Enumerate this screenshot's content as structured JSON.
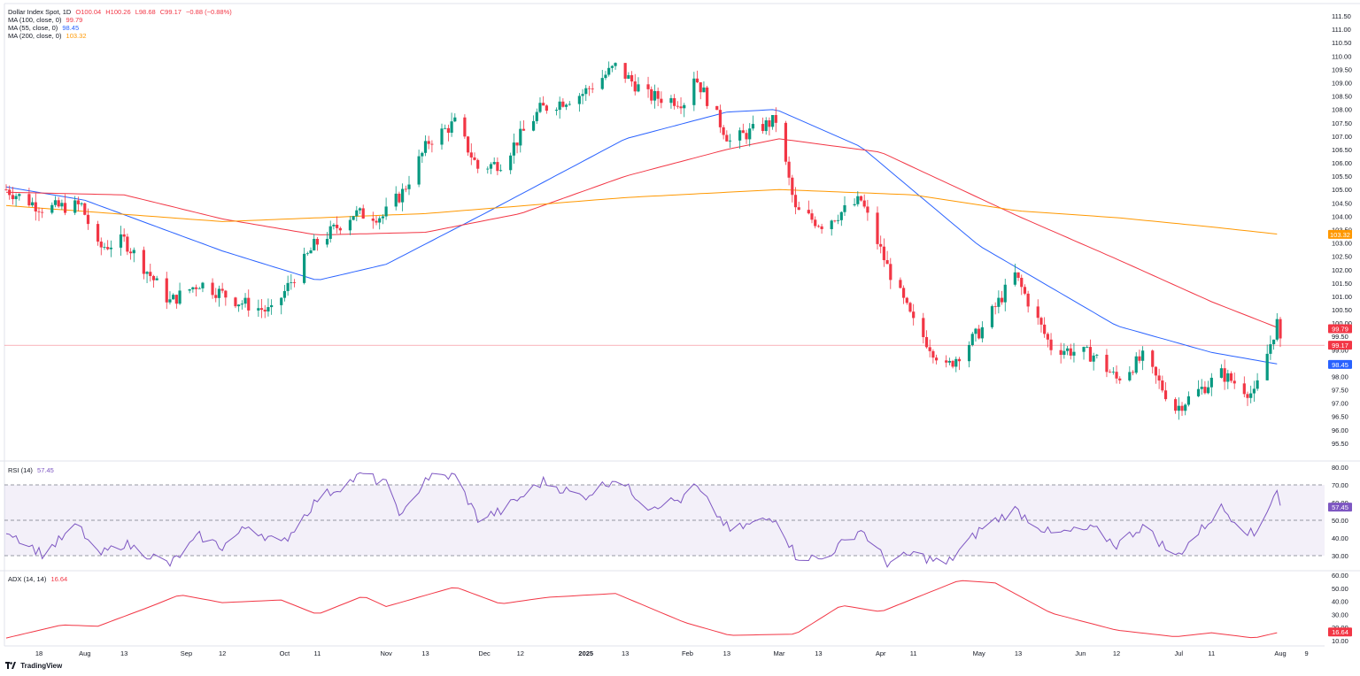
{
  "header": {
    "symbol": "Dollar Index Spot, 1D",
    "open": "O100.04",
    "high": "H100.26",
    "low": "L98.68",
    "close": "C99.17",
    "change": "−0.88 (−0.88%)"
  },
  "indicators": {
    "ma100": {
      "label": "MA (100, close, 0)",
      "value": "99.79",
      "color": "#f23645"
    },
    "ma55": {
      "label": "MA (55, close, 0)",
      "value": "98.45",
      "color": "#2962ff"
    },
    "ma200": {
      "label": "MA (200, close, 0)",
      "value": "103.32",
      "color": "#ff9800"
    },
    "rsi": {
      "label": "RSI (14)",
      "value": "57.45",
      "color": "#7e57c2"
    },
    "adx": {
      "label": "ADX (14, 14)",
      "value": "16.64",
      "color": "#f23645"
    }
  },
  "branding": "TradingView",
  "chart_data": {
    "type": "candlestick",
    "price_axis": {
      "ylim": [
        95.1,
        111.8
      ],
      "ticks": [
        "111.50",
        "111.00",
        "110.50",
        "110.00",
        "109.50",
        "109.00",
        "108.50",
        "108.00",
        "107.50",
        "107.00",
        "106.50",
        "106.00",
        "105.50",
        "105.00",
        "104.50",
        "104.00",
        "103.50",
        "103.00",
        "102.50",
        "102.00",
        "101.50",
        "101.00",
        "100.50",
        "100.00",
        "99.50",
        "99.00",
        "98.50",
        "98.00",
        "97.50",
        "97.00",
        "96.50",
        "96.00",
        "95.50"
      ],
      "last_price": "99.17",
      "badges": [
        {
          "text": "103.32",
          "value": 103.32,
          "color": "#ff9800"
        },
        {
          "text": "99.79",
          "value": 99.79,
          "color": "#f23645"
        },
        {
          "text": "99.17",
          "value": 99.17,
          "color": "#f23645"
        },
        {
          "text": "98.45",
          "value": 98.45,
          "color": "#2962ff"
        }
      ]
    },
    "time_axis": {
      "labels": [
        {
          "text": "18",
          "date": "2024-07-18"
        },
        {
          "text": "Aug",
          "date": "2024-08-01"
        },
        {
          "text": "13",
          "date": "2024-08-13"
        },
        {
          "text": "Sep",
          "date": "2024-09-01"
        },
        {
          "text": "12",
          "date": "2024-09-12"
        },
        {
          "text": "Oct",
          "date": "2024-10-01"
        },
        {
          "text": "11",
          "date": "2024-10-11"
        },
        {
          "text": "Nov",
          "date": "2024-11-01"
        },
        {
          "text": "13",
          "date": "2024-11-13"
        },
        {
          "text": "Dec",
          "date": "2024-12-01"
        },
        {
          "text": "12",
          "date": "2024-12-12"
        },
        {
          "text": "2025",
          "date": "2025-01-01"
        },
        {
          "text": "13",
          "date": "2025-01-13"
        },
        {
          "text": "Feb",
          "date": "2025-02-01"
        },
        {
          "text": "13",
          "date": "2025-02-13"
        },
        {
          "text": "Mar",
          "date": "2025-03-01"
        },
        {
          "text": "13",
          "date": "2025-03-13"
        },
        {
          "text": "Apr",
          "date": "2025-04-01"
        },
        {
          "text": "11",
          "date": "2025-04-11"
        },
        {
          "text": "May",
          "date": "2025-05-01"
        },
        {
          "text": "13",
          "date": "2025-05-13"
        },
        {
          "text": "Jun",
          "date": "2025-06-01"
        },
        {
          "text": "12",
          "date": "2025-06-12"
        },
        {
          "text": "Jul",
          "date": "2025-07-01"
        },
        {
          "text": "11",
          "date": "2025-07-11"
        },
        {
          "text": "Aug",
          "date": "2025-08-01"
        },
        {
          "text": "9",
          "date": "2025-08-09"
        }
      ]
    },
    "closes": [
      {
        "date": "2024-07-08",
        "close": 105.0
      },
      {
        "date": "2024-07-19",
        "close": 104.3
      },
      {
        "date": "2024-07-31",
        "close": 104.4
      },
      {
        "date": "2024-08-05",
        "close": 102.8
      },
      {
        "date": "2024-08-13",
        "close": 103.1
      },
      {
        "date": "2024-08-27",
        "close": 100.8
      },
      {
        "date": "2024-09-05",
        "close": 101.5
      },
      {
        "date": "2024-09-17",
        "close": 100.8
      },
      {
        "date": "2024-09-27",
        "close": 100.4
      },
      {
        "date": "2024-10-10",
        "close": 102.9
      },
      {
        "date": "2024-10-22",
        "close": 104.1
      },
      {
        "date": "2024-10-31",
        "close": 104.0
      },
      {
        "date": "2024-11-06",
        "close": 104.9
      },
      {
        "date": "2024-11-14",
        "close": 106.8
      },
      {
        "date": "2024-11-22",
        "close": 107.5
      },
      {
        "date": "2024-11-29",
        "close": 105.8
      },
      {
        "date": "2024-12-06",
        "close": 106.0
      },
      {
        "date": "2024-12-18",
        "close": 108.0
      },
      {
        "date": "2024-12-31",
        "close": 108.6
      },
      {
        "date": "2025-01-10",
        "close": 109.6
      },
      {
        "date": "2025-01-20",
        "close": 108.5
      },
      {
        "date": "2025-01-31",
        "close": 108.3
      },
      {
        "date": "2025-02-03",
        "close": 109.3
      },
      {
        "date": "2025-02-14",
        "close": 106.8
      },
      {
        "date": "2025-02-28",
        "close": 107.6
      },
      {
        "date": "2025-03-06",
        "close": 104.2
      },
      {
        "date": "2025-03-14",
        "close": 103.7
      },
      {
        "date": "2025-03-26",
        "close": 104.6
      },
      {
        "date": "2025-04-03",
        "close": 102.1
      },
      {
        "date": "2025-04-11",
        "close": 100.0
      },
      {
        "date": "2025-04-21",
        "close": 98.3
      },
      {
        "date": "2025-05-02",
        "close": 99.8
      },
      {
        "date": "2025-05-12",
        "close": 101.8
      },
      {
        "date": "2025-05-23",
        "close": 99.1
      },
      {
        "date": "2025-06-05",
        "close": 98.8
      },
      {
        "date": "2025-06-12",
        "close": 97.9
      },
      {
        "date": "2025-06-20",
        "close": 98.7
      },
      {
        "date": "2025-06-30",
        "close": 96.8
      },
      {
        "date": "2025-07-14",
        "close": 98.1
      },
      {
        "date": "2025-07-24",
        "close": 97.3
      },
      {
        "date": "2025-07-31",
        "close": 100.0
      },
      {
        "date": "2025-08-01",
        "close": 99.17
      }
    ],
    "ma_series": [
      {
        "name": "MA (55, close, 0)",
        "color": "#2962ff",
        "points": [
          {
            "date": "2024-07-08",
            "value": 105.1
          },
          {
            "date": "2024-08-01",
            "value": 104.6
          },
          {
            "date": "2024-09-12",
            "value": 102.7
          },
          {
            "date": "2024-10-11",
            "value": 101.6
          },
          {
            "date": "2024-11-01",
            "value": 102.2
          },
          {
            "date": "2024-12-01",
            "value": 104.1
          },
          {
            "date": "2025-01-13",
            "value": 106.9
          },
          {
            "date": "2025-02-13",
            "value": 107.9
          },
          {
            "date": "2025-02-28",
            "value": 108.0
          },
          {
            "date": "2025-03-26",
            "value": 106.6
          },
          {
            "date": "2025-05-01",
            "value": 102.9
          },
          {
            "date": "2025-06-12",
            "value": 99.9
          },
          {
            "date": "2025-07-11",
            "value": 98.9
          },
          {
            "date": "2025-08-01",
            "value": 98.45
          }
        ]
      },
      {
        "name": "MA (100, close, 0)",
        "color": "#f23645",
        "points": [
          {
            "date": "2024-07-08",
            "value": 104.9
          },
          {
            "date": "2024-08-13",
            "value": 104.8
          },
          {
            "date": "2024-09-12",
            "value": 103.9
          },
          {
            "date": "2024-10-11",
            "value": 103.3
          },
          {
            "date": "2024-11-13",
            "value": 103.4
          },
          {
            "date": "2024-12-12",
            "value": 104.1
          },
          {
            "date": "2025-01-13",
            "value": 105.5
          },
          {
            "date": "2025-02-13",
            "value": 106.5
          },
          {
            "date": "2025-03-01",
            "value": 106.9
          },
          {
            "date": "2025-04-01",
            "value": 106.4
          },
          {
            "date": "2025-05-13",
            "value": 104.0
          },
          {
            "date": "2025-06-12",
            "value": 102.4
          },
          {
            "date": "2025-07-11",
            "value": 100.8
          },
          {
            "date": "2025-08-01",
            "value": 99.79
          }
        ]
      },
      {
        "name": "MA (200, close, 0)",
        "color": "#ff9800",
        "points": [
          {
            "date": "2024-07-08",
            "value": 104.4
          },
          {
            "date": "2024-09-12",
            "value": 103.8
          },
          {
            "date": "2024-11-13",
            "value": 104.1
          },
          {
            "date": "2025-01-13",
            "value": 104.7
          },
          {
            "date": "2025-03-01",
            "value": 105.0
          },
          {
            "date": "2025-04-11",
            "value": 104.8
          },
          {
            "date": "2025-05-13",
            "value": 104.2
          },
          {
            "date": "2025-06-12",
            "value": 103.95
          },
          {
            "date": "2025-07-11",
            "value": 103.6
          },
          {
            "date": "2025-08-01",
            "value": 103.32
          }
        ]
      }
    ],
    "rsi": {
      "ylim": [
        22,
        82
      ],
      "ticks": [
        "80.00",
        "70.00",
        "60.00",
        "50.00",
        "40.00",
        "30.00"
      ],
      "levels": [
        70,
        50,
        30
      ],
      "last": "57.45",
      "points": [
        {
          "date": "2024-07-08",
          "value": 45
        },
        {
          "date": "2024-07-19",
          "value": 31
        },
        {
          "date": "2024-07-30",
          "value": 47
        },
        {
          "date": "2024-08-05",
          "value": 30
        },
        {
          "date": "2024-08-13",
          "value": 37
        },
        {
          "date": "2024-08-27",
          "value": 25
        },
        {
          "date": "2024-09-05",
          "value": 41
        },
        {
          "date": "2024-09-12",
          "value": 35
        },
        {
          "date": "2024-09-20",
          "value": 47
        },
        {
          "date": "2024-09-30",
          "value": 36
        },
        {
          "date": "2024-10-11",
          "value": 62
        },
        {
          "date": "2024-10-25",
          "value": 76
        },
        {
          "date": "2024-11-01",
          "value": 70
        },
        {
          "date": "2024-11-06",
          "value": 52
        },
        {
          "date": "2024-11-13",
          "value": 74
        },
        {
          "date": "2024-11-22",
          "value": 75
        },
        {
          "date": "2024-11-29",
          "value": 51
        },
        {
          "date": "2024-12-06",
          "value": 55
        },
        {
          "date": "2024-12-19",
          "value": 72
        },
        {
          "date": "2024-12-31",
          "value": 63
        },
        {
          "date": "2025-01-10",
          "value": 74
        },
        {
          "date": "2025-01-20",
          "value": 58
        },
        {
          "date": "2025-01-31",
          "value": 62
        },
        {
          "date": "2025-02-03",
          "value": 70
        },
        {
          "date": "2025-02-14",
          "value": 44
        },
        {
          "date": "2025-02-28",
          "value": 52
        },
        {
          "date": "2025-03-06",
          "value": 30
        },
        {
          "date": "2025-03-14",
          "value": 28
        },
        {
          "date": "2025-03-26",
          "value": 45
        },
        {
          "date": "2025-04-03",
          "value": 26
        },
        {
          "date": "2025-04-11",
          "value": 31
        },
        {
          "date": "2025-04-21",
          "value": 25
        },
        {
          "date": "2025-05-02",
          "value": 46
        },
        {
          "date": "2025-05-12",
          "value": 56
        },
        {
          "date": "2025-05-23",
          "value": 42
        },
        {
          "date": "2025-06-05",
          "value": 45
        },
        {
          "date": "2025-06-12",
          "value": 36
        },
        {
          "date": "2025-06-20",
          "value": 47
        },
        {
          "date": "2025-06-30",
          "value": 29
        },
        {
          "date": "2025-07-14",
          "value": 57
        },
        {
          "date": "2025-07-24",
          "value": 41
        },
        {
          "date": "2025-07-31",
          "value": 68
        },
        {
          "date": "2025-08-01",
          "value": 57.45
        }
      ]
    },
    "adx": {
      "ylim": [
        8,
        62
      ],
      "ticks": [
        "60.00",
        "50.00",
        "40.00",
        "30.00",
        "20.00",
        "10.00"
      ],
      "last": "16.64",
      "points": [
        {
          "date": "2024-07-08",
          "value": 12
        },
        {
          "date": "2024-07-25",
          "value": 22
        },
        {
          "date": "2024-08-05",
          "value": 21
        },
        {
          "date": "2024-08-20",
          "value": 35
        },
        {
          "date": "2024-08-30",
          "value": 45
        },
        {
          "date": "2024-09-12",
          "value": 39
        },
        {
          "date": "2024-09-30",
          "value": 41
        },
        {
          "date": "2024-10-11",
          "value": 30
        },
        {
          "date": "2024-10-25",
          "value": 44
        },
        {
          "date": "2024-11-01",
          "value": 36
        },
        {
          "date": "2024-11-22",
          "value": 51
        },
        {
          "date": "2024-12-06",
          "value": 38
        },
        {
          "date": "2024-12-20",
          "value": 43
        },
        {
          "date": "2025-01-10",
          "value": 46
        },
        {
          "date": "2025-01-31",
          "value": 24
        },
        {
          "date": "2025-02-14",
          "value": 14
        },
        {
          "date": "2025-03-06",
          "value": 15
        },
        {
          "date": "2025-03-20",
          "value": 37
        },
        {
          "date": "2025-04-01",
          "value": 32
        },
        {
          "date": "2025-04-25",
          "value": 56
        },
        {
          "date": "2025-05-06",
          "value": 54
        },
        {
          "date": "2025-05-23",
          "value": 31
        },
        {
          "date": "2025-06-12",
          "value": 18
        },
        {
          "date": "2025-06-30",
          "value": 13
        },
        {
          "date": "2025-07-11",
          "value": 16
        },
        {
          "date": "2025-07-24",
          "value": 12
        },
        {
          "date": "2025-08-01",
          "value": 16.64
        }
      ]
    }
  }
}
